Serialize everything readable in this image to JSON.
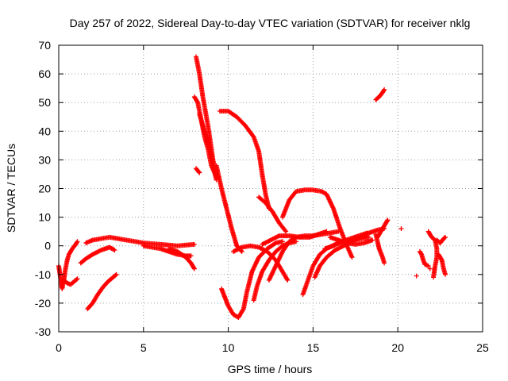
{
  "chart_data": {
    "type": "scatter",
    "title": "Day 257 of 2022, Sidereal Day-to-day VTEC variation (SDTVAR) for receiver nklg",
    "xlabel": "GPS time / hours",
    "ylabel": "SDTVAR / TECUs",
    "xlim": [
      0,
      25
    ],
    "ylim": [
      -30,
      70
    ],
    "xticks": [
      "0",
      "5",
      "10",
      "15",
      "20",
      "25"
    ],
    "yticks": [
      "-30",
      "-20",
      "-10",
      "0",
      "10",
      "20",
      "30",
      "40",
      "50",
      "60",
      "70"
    ],
    "grid": true,
    "marker": "+",
    "color": "#ff0000",
    "series": [
      {
        "name": "s1",
        "points": [
          [
            0.0,
            -7
          ],
          [
            0.1,
            -11
          ],
          [
            0.2,
            -15
          ],
          [
            0.3,
            -12
          ],
          [
            0.5,
            -13
          ],
          [
            0.7,
            -13.5
          ],
          [
            0.9,
            -12.5
          ],
          [
            1.1,
            -11.5
          ]
        ]
      },
      {
        "name": "s2",
        "points": [
          [
            0.3,
            -12
          ],
          [
            0.4,
            -8
          ],
          [
            0.5,
            -5
          ],
          [
            0.6,
            -3
          ],
          [
            0.8,
            -1
          ],
          [
            1.0,
            0.5
          ],
          [
            1.1,
            1.5
          ]
        ]
      },
      {
        "name": "s3",
        "points": [
          [
            1.3,
            -6
          ],
          [
            1.6,
            -4.5
          ],
          [
            2.0,
            -3
          ],
          [
            2.5,
            -1.5
          ],
          [
            3.0,
            -0.5
          ],
          [
            3.3,
            -1.5
          ]
        ]
      },
      {
        "name": "s4",
        "points": [
          [
            1.6,
            1
          ],
          [
            2.0,
            2
          ],
          [
            2.5,
            2.5
          ],
          [
            3.0,
            3
          ],
          [
            3.5,
            2.5
          ],
          [
            4.0,
            2
          ],
          [
            5.0,
            1
          ],
          [
            6.0,
            0.5
          ],
          [
            7.0,
            0
          ],
          [
            8.0,
            0.5
          ]
        ]
      },
      {
        "name": "s5",
        "points": [
          [
            5.0,
            0
          ],
          [
            5.5,
            -0.5
          ],
          [
            6.0,
            -1
          ],
          [
            6.5,
            -2
          ],
          [
            7.0,
            -3
          ],
          [
            7.5,
            -3.5
          ],
          [
            7.8,
            -3.5
          ]
        ]
      },
      {
        "name": "s6",
        "points": [
          [
            6.5,
            -1
          ],
          [
            7.0,
            -2
          ],
          [
            7.5,
            -4
          ],
          [
            7.8,
            -6
          ],
          [
            8.0,
            -8
          ]
        ]
      },
      {
        "name": "s7",
        "points": [
          [
            1.7,
            -22
          ],
          [
            2.0,
            -20
          ],
          [
            2.3,
            -17
          ],
          [
            2.6,
            -14.5
          ],
          [
            2.9,
            -12.5
          ],
          [
            3.2,
            -11
          ],
          [
            3.4,
            -10
          ]
        ]
      },
      {
        "name": "s8",
        "points": [
          [
            8.1,
            66
          ],
          [
            8.3,
            60
          ],
          [
            8.5,
            52
          ],
          [
            8.8,
            42
          ],
          [
            9.0,
            34
          ],
          [
            9.2,
            26
          ]
        ]
      },
      {
        "name": "s9",
        "points": [
          [
            8.0,
            52
          ],
          [
            8.2,
            50
          ],
          [
            8.4,
            44
          ],
          [
            8.6,
            38
          ],
          [
            8.8,
            34
          ],
          [
            9.0,
            28
          ],
          [
            9.3,
            24
          ]
        ]
      },
      {
        "name": "s10",
        "points": [
          [
            8.3,
            46
          ],
          [
            8.6,
            40
          ],
          [
            8.9,
            34
          ],
          [
            9.1,
            28
          ],
          [
            9.3,
            23
          ]
        ]
      },
      {
        "name": "s11",
        "points": [
          [
            8.1,
            27
          ],
          [
            8.3,
            25.5
          ]
        ]
      },
      {
        "name": "s12",
        "points": [
          [
            9.3,
            28
          ],
          [
            9.6,
            20
          ],
          [
            9.9,
            13
          ],
          [
            10.2,
            6
          ],
          [
            10.5,
            0
          ],
          [
            10.8,
            -2
          ]
        ]
      },
      {
        "name": "s13",
        "points": [
          [
            9.5,
            47
          ],
          [
            10.0,
            47
          ],
          [
            10.5,
            45
          ],
          [
            11.0,
            42
          ],
          [
            11.5,
            38
          ],
          [
            11.8,
            33
          ],
          [
            12.0,
            25
          ],
          [
            12.2,
            18
          ],
          [
            12.4,
            13
          ]
        ]
      },
      {
        "name": "s14",
        "points": [
          [
            11.8,
            17
          ],
          [
            12.2,
            15
          ],
          [
            12.6,
            12
          ],
          [
            13.0,
            8
          ],
          [
            13.4,
            5
          ]
        ]
      },
      {
        "name": "s15",
        "points": [
          [
            10.3,
            -2
          ],
          [
            10.8,
            -0.5
          ],
          [
            11.3,
            0
          ],
          [
            11.8,
            -0.5
          ],
          [
            12.3,
            -2
          ],
          [
            12.8,
            -5
          ],
          [
            13.2,
            -9
          ],
          [
            13.5,
            -12
          ]
        ]
      },
      {
        "name": "s16",
        "points": [
          [
            9.6,
            -15
          ],
          [
            9.8,
            -18
          ],
          [
            10.0,
            -21
          ],
          [
            10.3,
            -24
          ],
          [
            10.6,
            -25
          ],
          [
            10.9,
            -22
          ],
          [
            11.1,
            -16
          ],
          [
            11.4,
            -9
          ],
          [
            11.8,
            -4
          ],
          [
            12.3,
            -1
          ],
          [
            12.8,
            1
          ],
          [
            13.2,
            1.5
          ]
        ]
      },
      {
        "name": "s17",
        "points": [
          [
            11.5,
            -19
          ],
          [
            11.7,
            -14
          ],
          [
            12.0,
            -9
          ],
          [
            12.4,
            -5
          ],
          [
            12.8,
            -2
          ],
          [
            13.2,
            0
          ],
          [
            13.6,
            1
          ],
          [
            14.0,
            1.5
          ]
        ]
      },
      {
        "name": "s18",
        "points": [
          [
            12.4,
            -12
          ],
          [
            12.8,
            -7
          ],
          [
            13.2,
            -2
          ],
          [
            13.6,
            1.5
          ],
          [
            14.0,
            3
          ],
          [
            14.5,
            3.5
          ],
          [
            15.0,
            3.5
          ],
          [
            15.5,
            4
          ],
          [
            16.0,
            4.5
          ],
          [
            16.5,
            5
          ]
        ]
      },
      {
        "name": "s19",
        "points": [
          [
            12.0,
            0.5
          ],
          [
            12.5,
            2
          ],
          [
            13.0,
            3.5
          ],
          [
            13.6,
            3.5
          ],
          [
            14.2,
            3
          ],
          [
            14.8,
            3
          ],
          [
            15.3,
            4
          ],
          [
            15.8,
            5
          ]
        ]
      },
      {
        "name": "s20",
        "points": [
          [
            13.2,
            10
          ],
          [
            13.6,
            16
          ],
          [
            14.0,
            19
          ],
          [
            14.5,
            19.5
          ],
          [
            15.0,
            19.5
          ],
          [
            15.5,
            19
          ],
          [
            15.8,
            18
          ],
          [
            16.2,
            13
          ],
          [
            16.6,
            6
          ],
          [
            17.0,
            0
          ],
          [
            17.3,
            -4
          ]
        ]
      },
      {
        "name": "s21",
        "points": [
          [
            14.4,
            -17
          ],
          [
            14.7,
            -12
          ],
          [
            15.0,
            -7
          ],
          [
            15.4,
            -3
          ],
          [
            15.8,
            -1
          ],
          [
            16.3,
            0.5
          ],
          [
            16.8,
            1.5
          ],
          [
            17.3,
            2
          ],
          [
            17.8,
            2.5
          ],
          [
            18.3,
            3
          ]
        ]
      },
      {
        "name": "s22",
        "points": [
          [
            15.1,
            -11
          ],
          [
            15.4,
            -7
          ],
          [
            15.8,
            -4
          ],
          [
            16.3,
            -1.5
          ],
          [
            16.8,
            0
          ],
          [
            17.3,
            1.5
          ],
          [
            17.8,
            3
          ],
          [
            18.3,
            4.5
          ],
          [
            18.8,
            5.5
          ],
          [
            19.2,
            6
          ]
        ]
      },
      {
        "name": "s23",
        "points": [
          [
            15.7,
            -1
          ],
          [
            16.2,
            0
          ],
          [
            16.7,
            1.5
          ],
          [
            17.2,
            2.5
          ],
          [
            17.7,
            3.5
          ],
          [
            18.2,
            4.5
          ]
        ]
      },
      {
        "name": "s24",
        "points": [
          [
            16.0,
            3
          ],
          [
            16.5,
            2
          ],
          [
            17.0,
            1
          ],
          [
            17.5,
            0.5
          ],
          [
            18.0,
            1
          ],
          [
            18.5,
            2
          ]
        ]
      },
      {
        "name": "s25",
        "points": [
          [
            18.7,
            4
          ],
          [
            18.9,
            -1
          ],
          [
            19.1,
            -4
          ],
          [
            19.2,
            -6
          ]
        ]
      },
      {
        "name": "s26",
        "points": [
          [
            18.7,
            51
          ],
          [
            18.9,
            52
          ],
          [
            19.1,
            53.5
          ],
          [
            19.2,
            54.5
          ]
        ]
      },
      {
        "name": "s27",
        "points": [
          [
            18.8,
            3
          ],
          [
            19.0,
            5
          ],
          [
            19.2,
            7
          ],
          [
            19.4,
            9
          ]
        ]
      },
      {
        "name": "s28",
        "points": [
          [
            20.2,
            6
          ]
        ]
      },
      {
        "name": "s29",
        "points": [
          [
            21.1,
            -10.5
          ]
        ]
      },
      {
        "name": "s30",
        "points": [
          [
            21.3,
            -2
          ],
          [
            21.4,
            -3
          ],
          [
            21.5,
            -5
          ],
          [
            21.6,
            -6.5
          ],
          [
            21.8,
            -7
          ]
        ]
      },
      {
        "name": "s31",
        "points": [
          [
            21.8,
            5
          ],
          [
            22.0,
            3
          ],
          [
            22.2,
            2
          ],
          [
            22.3,
            -1
          ],
          [
            22.3,
            -4
          ],
          [
            22.2,
            -7
          ],
          [
            22.1,
            -11
          ]
        ]
      },
      {
        "name": "s32",
        "points": [
          [
            22.3,
            2
          ],
          [
            22.5,
            1
          ],
          [
            22.7,
            2.5
          ],
          [
            22.8,
            3
          ]
        ]
      },
      {
        "name": "s33",
        "points": [
          [
            22.4,
            -3
          ],
          [
            22.6,
            -5
          ],
          [
            22.7,
            -8
          ],
          [
            22.8,
            -10
          ]
        ]
      },
      {
        "name": "s34",
        "points": [
          [
            21.9,
            -8
          ]
        ]
      }
    ]
  }
}
